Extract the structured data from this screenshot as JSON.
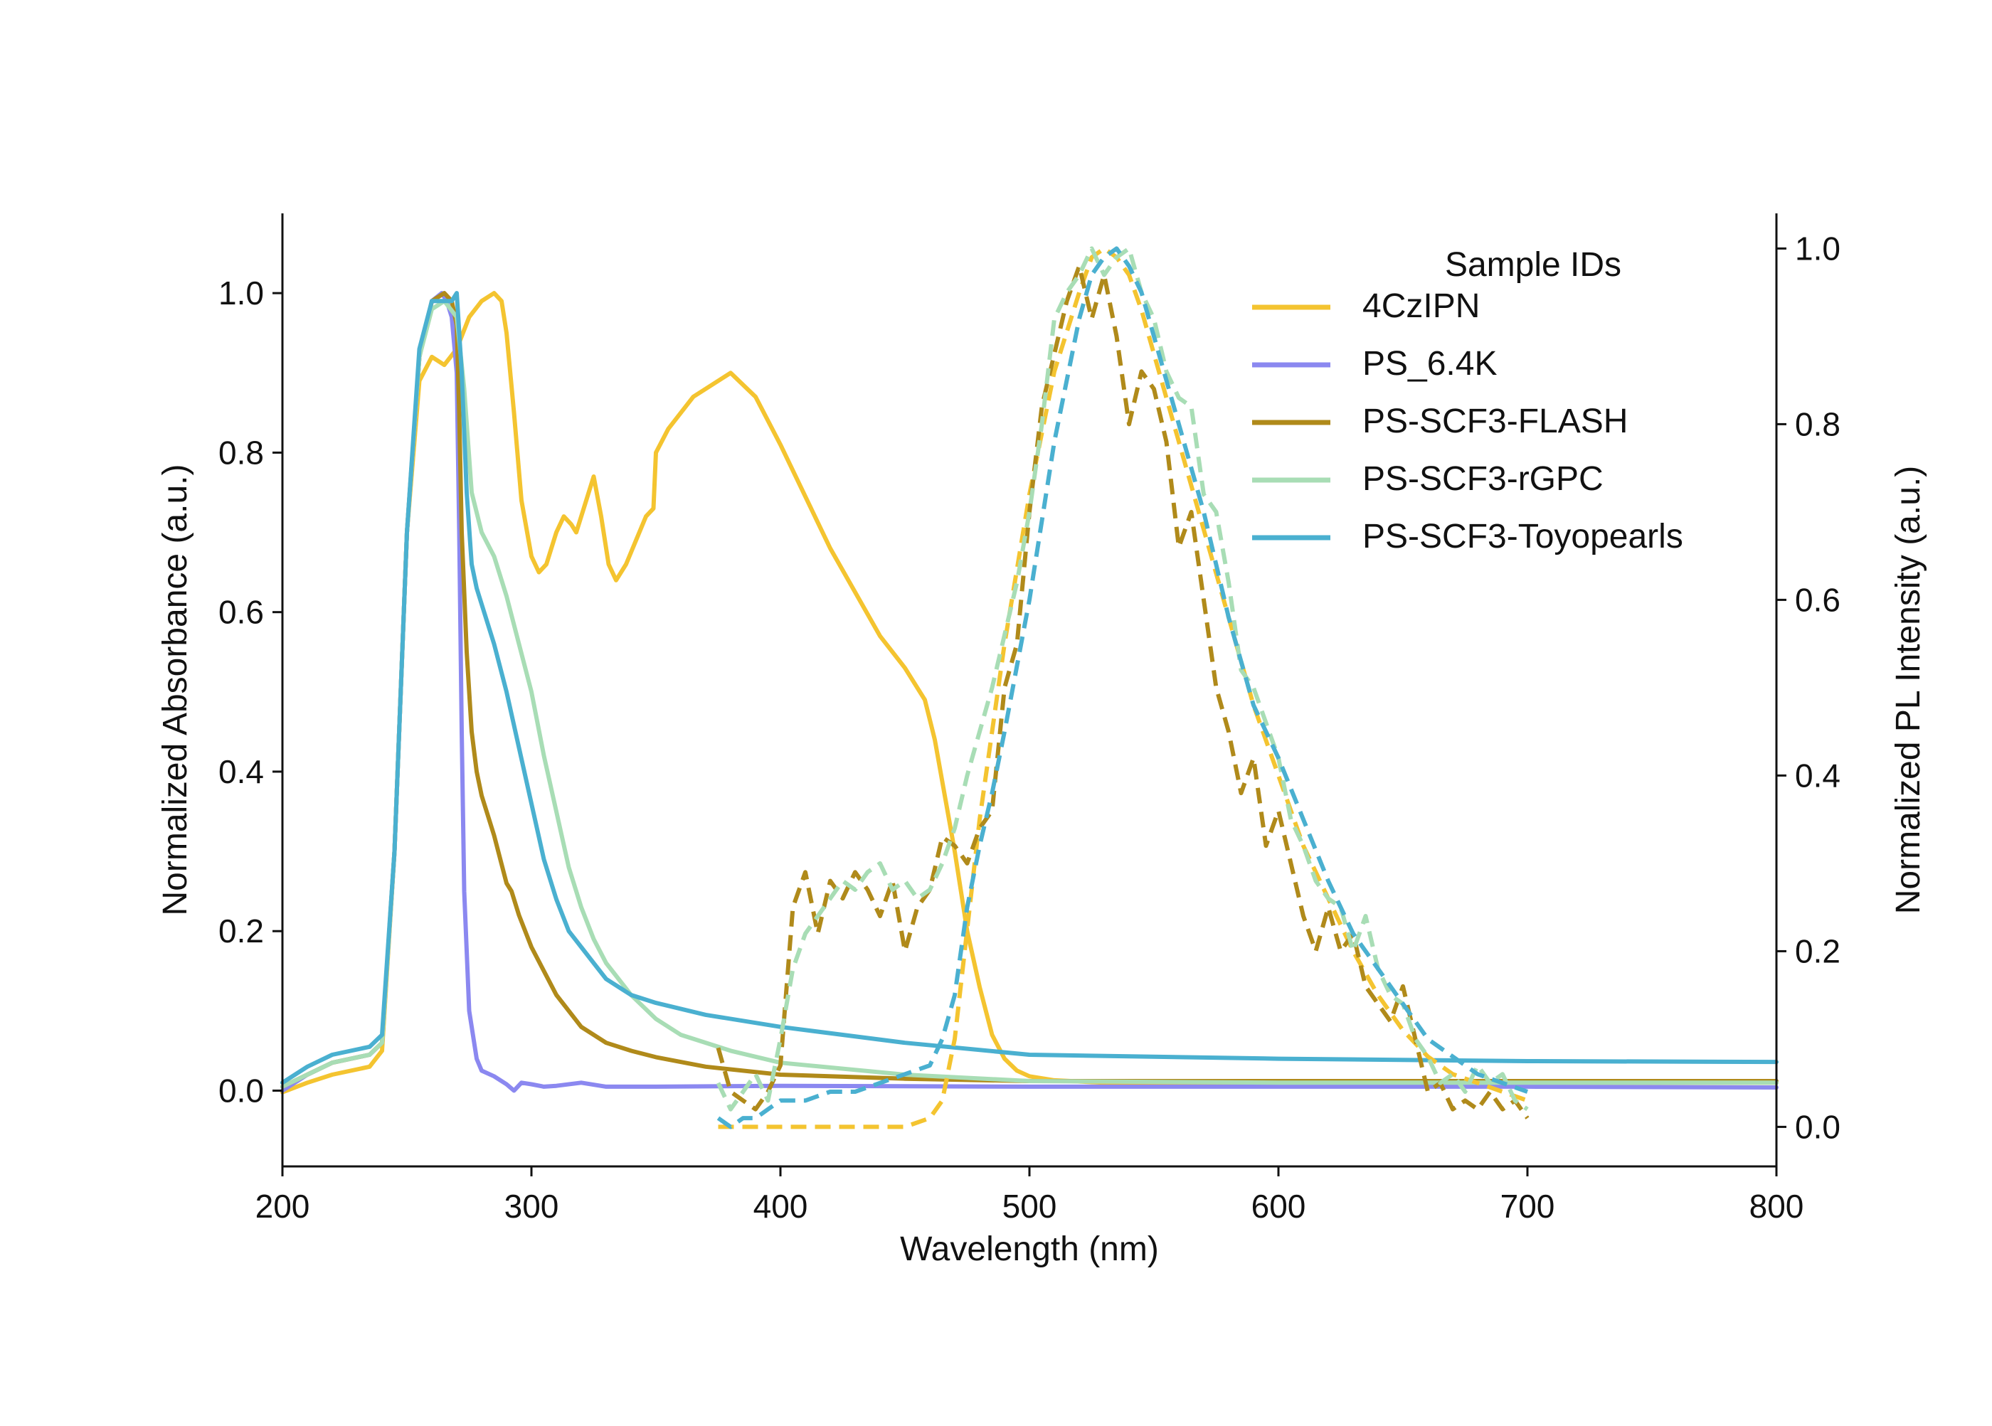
{
  "chart_data": {
    "type": "line",
    "xlabel": "Wavelength (nm)",
    "ylabel": "Normalized Absorbance (a.u.)",
    "y2label": "Normalized PL Intensity (a.u.)",
    "xlim": [
      200,
      800
    ],
    "ylim": [
      -0.095,
      1.1
    ],
    "y2lim": [
      -0.045,
      1.04
    ],
    "x_ticks": [
      200,
      300,
      400,
      500,
      600,
      700,
      800
    ],
    "y_ticks": [
      0.0,
      0.2,
      0.4,
      0.6,
      0.8,
      1.0
    ],
    "y2_ticks": [
      0.0,
      0.2,
      0.4,
      0.6,
      0.8,
      1.0
    ],
    "x_tick_labels": [
      "200",
      "300",
      "400",
      "500",
      "600",
      "700",
      "800"
    ],
    "y_tick_labels": [
      "0.0",
      "0.2",
      "0.4",
      "0.6",
      "0.8",
      "1.0"
    ],
    "y2_tick_labels": [
      "0.0",
      "0.2",
      "0.4",
      "0.6",
      "0.8",
      "1.0"
    ],
    "grid": false,
    "legend": {
      "title": "Sample IDs",
      "placement": "top-right",
      "entries": [
        "4CzIPN",
        "PS_6.4K",
        "PS-SCF3-FLASH",
        "PS-SCF3-rGPC",
        "PS-SCF3-Toyopearls"
      ]
    },
    "series": [
      {
        "name": "4CzIPN",
        "kind": "absorbance",
        "axis": "left",
        "dash": false,
        "color": "#F4C430",
        "x": [
          200,
          210,
          220,
          235,
          240,
          245,
          250,
          255,
          260,
          265,
          270,
          275,
          280,
          285,
          288,
          290,
          293,
          296,
          300,
          303,
          306,
          310,
          313,
          316,
          318,
          322,
          325,
          328,
          331,
          334,
          338,
          342,
          346,
          349,
          350,
          355,
          365,
          380,
          390,
          400,
          420,
          440,
          450,
          458,
          462,
          470,
          475,
          480,
          485,
          490,
          495,
          500,
          510,
          530,
          600,
          700,
          800
        ],
        "y": [
          -0.002,
          0.01,
          0.02,
          0.03,
          0.05,
          0.3,
          0.7,
          0.89,
          0.92,
          0.91,
          0.93,
          0.97,
          0.99,
          1.0,
          0.99,
          0.95,
          0.85,
          0.74,
          0.67,
          0.65,
          0.66,
          0.7,
          0.72,
          0.71,
          0.7,
          0.74,
          0.77,
          0.72,
          0.66,
          0.64,
          0.66,
          0.69,
          0.72,
          0.73,
          0.8,
          0.83,
          0.87,
          0.9,
          0.87,
          0.81,
          0.68,
          0.57,
          0.53,
          0.49,
          0.44,
          0.3,
          0.2,
          0.13,
          0.07,
          0.04,
          0.025,
          0.018,
          0.013,
          0.01,
          0.01,
          0.01,
          0.01
        ]
      },
      {
        "name": "PS_6.4K",
        "kind": "absorbance",
        "axis": "left",
        "dash": false,
        "color": "#8B88F0",
        "x": [
          200,
          210,
          220,
          235,
          240,
          245,
          250,
          255,
          260,
          264,
          266,
          268,
          270,
          271,
          272,
          273,
          275,
          278,
          280,
          285,
          290,
          293,
          296,
          300,
          305,
          310,
          320,
          330,
          350,
          400,
          500,
          600,
          700,
          800
        ],
        "y": [
          0.0,
          0.02,
          0.035,
          0.045,
          0.06,
          0.3,
          0.7,
          0.92,
          0.99,
          1.0,
          0.99,
          0.97,
          0.9,
          0.7,
          0.45,
          0.25,
          0.1,
          0.04,
          0.025,
          0.018,
          0.008,
          0.0,
          0.01,
          0.008,
          0.005,
          0.006,
          0.01,
          0.005,
          0.005,
          0.006,
          0.005,
          0.005,
          0.005,
          0.004
        ]
      },
      {
        "name": "PS-SCF3-FLASH",
        "kind": "absorbance",
        "axis": "left",
        "dash": false,
        "color": "#B08A1A",
        "x": [
          200,
          210,
          220,
          235,
          240,
          245,
          250,
          255,
          260,
          265,
          268,
          270,
          271,
          272,
          274,
          276,
          278,
          280,
          285,
          290,
          292,
          295,
          300,
          310,
          320,
          330,
          340,
          350,
          370,
          400,
          450,
          500,
          600,
          700,
          800
        ],
        "y": [
          0.005,
          0.02,
          0.035,
          0.045,
          0.06,
          0.3,
          0.7,
          0.92,
          0.99,
          1.0,
          0.99,
          0.96,
          0.85,
          0.7,
          0.55,
          0.45,
          0.4,
          0.37,
          0.32,
          0.26,
          0.25,
          0.22,
          0.18,
          0.12,
          0.08,
          0.06,
          0.05,
          0.042,
          0.03,
          0.02,
          0.015,
          0.012,
          0.012,
          0.012,
          0.012
        ]
      },
      {
        "name": "PS-SCF3-rGPC",
        "kind": "absorbance",
        "axis": "left",
        "dash": false,
        "color": "#A8DDB5",
        "x": [
          200,
          210,
          220,
          235,
          240,
          245,
          250,
          255,
          260,
          265,
          270,
          273,
          276,
          280,
          285,
          290,
          295,
          300,
          305,
          310,
          315,
          320,
          325,
          330,
          340,
          350,
          360,
          380,
          400,
          450,
          500,
          600,
          700,
          800
        ],
        "y": [
          0.005,
          0.02,
          0.035,
          0.045,
          0.06,
          0.3,
          0.7,
          0.92,
          0.98,
          0.99,
          0.97,
          0.88,
          0.75,
          0.7,
          0.67,
          0.62,
          0.56,
          0.5,
          0.42,
          0.35,
          0.28,
          0.23,
          0.19,
          0.16,
          0.12,
          0.09,
          0.07,
          0.05,
          0.035,
          0.02,
          0.012,
          0.01,
          0.01,
          0.01
        ]
      },
      {
        "name": "PS-SCF3-Toyopearls",
        "kind": "absorbance",
        "axis": "left",
        "dash": false,
        "color": "#4AB0D0",
        "x": [
          200,
          210,
          220,
          235,
          240,
          245,
          250,
          255,
          260,
          265,
          268,
          270,
          272,
          274,
          276,
          278,
          280,
          285,
          290,
          295,
          300,
          305,
          310,
          315,
          320,
          325,
          330,
          335,
          340,
          350,
          370,
          400,
          450,
          500,
          600,
          700,
          800
        ],
        "y": [
          0.01,
          0.03,
          0.045,
          0.055,
          0.07,
          0.3,
          0.7,
          0.93,
          0.99,
          0.99,
          0.99,
          1.0,
          0.9,
          0.75,
          0.66,
          0.63,
          0.61,
          0.56,
          0.5,
          0.43,
          0.36,
          0.29,
          0.24,
          0.2,
          0.18,
          0.16,
          0.14,
          0.13,
          0.12,
          0.11,
          0.095,
          0.08,
          0.06,
          0.045,
          0.04,
          0.037,
          0.036
        ]
      },
      {
        "name": "4CzIPN",
        "kind": "PL",
        "axis": "right",
        "dash": true,
        "color": "#F4C430",
        "x": [
          375,
          400,
          450,
          460,
          465,
          470,
          480,
          490,
          500,
          510,
          520,
          525,
          530,
          535,
          540,
          545,
          550,
          560,
          570,
          580,
          590,
          600,
          610,
          620,
          630,
          640,
          650,
          660,
          670,
          680,
          690,
          700
        ],
        "y": [
          0.0,
          0.0,
          0.0,
          0.01,
          0.03,
          0.1,
          0.35,
          0.55,
          0.72,
          0.86,
          0.95,
          0.99,
          1.0,
          0.99,
          0.97,
          0.93,
          0.88,
          0.78,
          0.68,
          0.58,
          0.48,
          0.4,
          0.32,
          0.26,
          0.2,
          0.15,
          0.11,
          0.08,
          0.06,
          0.05,
          0.04,
          0.03
        ]
      },
      {
        "name": "PS-SCF3-FLASH",
        "kind": "PL",
        "axis": "right",
        "dash": true,
        "color": "#B08A1A",
        "x": [
          375,
          380,
          385,
          390,
          395,
          400,
          405,
          410,
          415,
          420,
          425,
          430,
          435,
          440,
          445,
          450,
          455,
          460,
          465,
          470,
          475,
          480,
          485,
          490,
          495,
          500,
          505,
          510,
          515,
          520,
          525,
          530,
          535,
          540,
          545,
          550,
          555,
          560,
          565,
          570,
          575,
          580,
          585,
          590,
          595,
          600,
          605,
          610,
          615,
          620,
          625,
          630,
          635,
          640,
          645,
          650,
          655,
          660,
          665,
          670,
          675,
          680,
          685,
          690,
          695,
          700
        ],
        "y": [
          0.09,
          0.04,
          0.03,
          0.02,
          0.04,
          0.07,
          0.25,
          0.29,
          0.22,
          0.28,
          0.26,
          0.29,
          0.27,
          0.24,
          0.28,
          0.2,
          0.25,
          0.27,
          0.33,
          0.32,
          0.3,
          0.34,
          0.36,
          0.5,
          0.55,
          0.7,
          0.82,
          0.88,
          0.94,
          0.98,
          0.92,
          0.97,
          0.9,
          0.8,
          0.86,
          0.84,
          0.78,
          0.66,
          0.7,
          0.6,
          0.5,
          0.45,
          0.38,
          0.42,
          0.32,
          0.36,
          0.3,
          0.24,
          0.2,
          0.25,
          0.2,
          0.22,
          0.16,
          0.14,
          0.12,
          0.16,
          0.1,
          0.04,
          0.05,
          0.02,
          0.03,
          0.02,
          0.04,
          0.02,
          0.03,
          0.01
        ]
      },
      {
        "name": "PS-SCF3-rGPC",
        "kind": "PL",
        "axis": "right",
        "dash": true,
        "color": "#A8DDB5",
        "x": [
          375,
          380,
          385,
          390,
          395,
          400,
          405,
          410,
          415,
          420,
          425,
          430,
          435,
          440,
          445,
          450,
          455,
          460,
          465,
          470,
          475,
          480,
          485,
          490,
          495,
          500,
          505,
          510,
          515,
          520,
          525,
          530,
          535,
          540,
          545,
          550,
          555,
          560,
          565,
          570,
          575,
          580,
          585,
          590,
          595,
          600,
          605,
          610,
          615,
          620,
          625,
          630,
          635,
          640,
          645,
          650,
          655,
          660,
          665,
          670,
          675,
          680,
          685,
          690,
          695,
          700
        ],
        "y": [
          0.05,
          0.02,
          0.04,
          0.06,
          0.03,
          0.1,
          0.18,
          0.22,
          0.24,
          0.26,
          0.28,
          0.27,
          0.29,
          0.3,
          0.27,
          0.28,
          0.26,
          0.27,
          0.3,
          0.34,
          0.4,
          0.45,
          0.5,
          0.56,
          0.62,
          0.7,
          0.8,
          0.92,
          0.95,
          0.97,
          1.0,
          0.97,
          0.99,
          1.0,
          0.95,
          0.92,
          0.86,
          0.83,
          0.82,
          0.72,
          0.7,
          0.62,
          0.52,
          0.5,
          0.46,
          0.42,
          0.35,
          0.32,
          0.28,
          0.26,
          0.25,
          0.2,
          0.24,
          0.18,
          0.15,
          0.14,
          0.1,
          0.08,
          0.05,
          0.06,
          0.04,
          0.07,
          0.05,
          0.06,
          0.03,
          0.02
        ]
      },
      {
        "name": "PS-SCF3-Toyopearls",
        "kind": "PL",
        "axis": "right",
        "dash": true,
        "color": "#4AB0D0",
        "x": [
          375,
          380,
          385,
          390,
          395,
          400,
          410,
          420,
          430,
          440,
          450,
          460,
          465,
          470,
          475,
          480,
          485,
          490,
          500,
          510,
          520,
          525,
          530,
          535,
          540,
          545,
          550,
          555,
          560,
          570,
          580,
          590,
          600,
          610,
          620,
          630,
          640,
          650,
          660,
          670,
          680,
          690,
          700
        ],
        "y": [
          0.01,
          0.0,
          0.01,
          0.01,
          0.02,
          0.03,
          0.03,
          0.04,
          0.04,
          0.05,
          0.06,
          0.07,
          0.1,
          0.15,
          0.25,
          0.32,
          0.38,
          0.45,
          0.6,
          0.78,
          0.92,
          0.97,
          0.99,
          1.0,
          0.98,
          0.95,
          0.9,
          0.85,
          0.8,
          0.7,
          0.58,
          0.48,
          0.42,
          0.35,
          0.28,
          0.22,
          0.18,
          0.14,
          0.1,
          0.08,
          0.06,
          0.05,
          0.04
        ]
      }
    ]
  }
}
